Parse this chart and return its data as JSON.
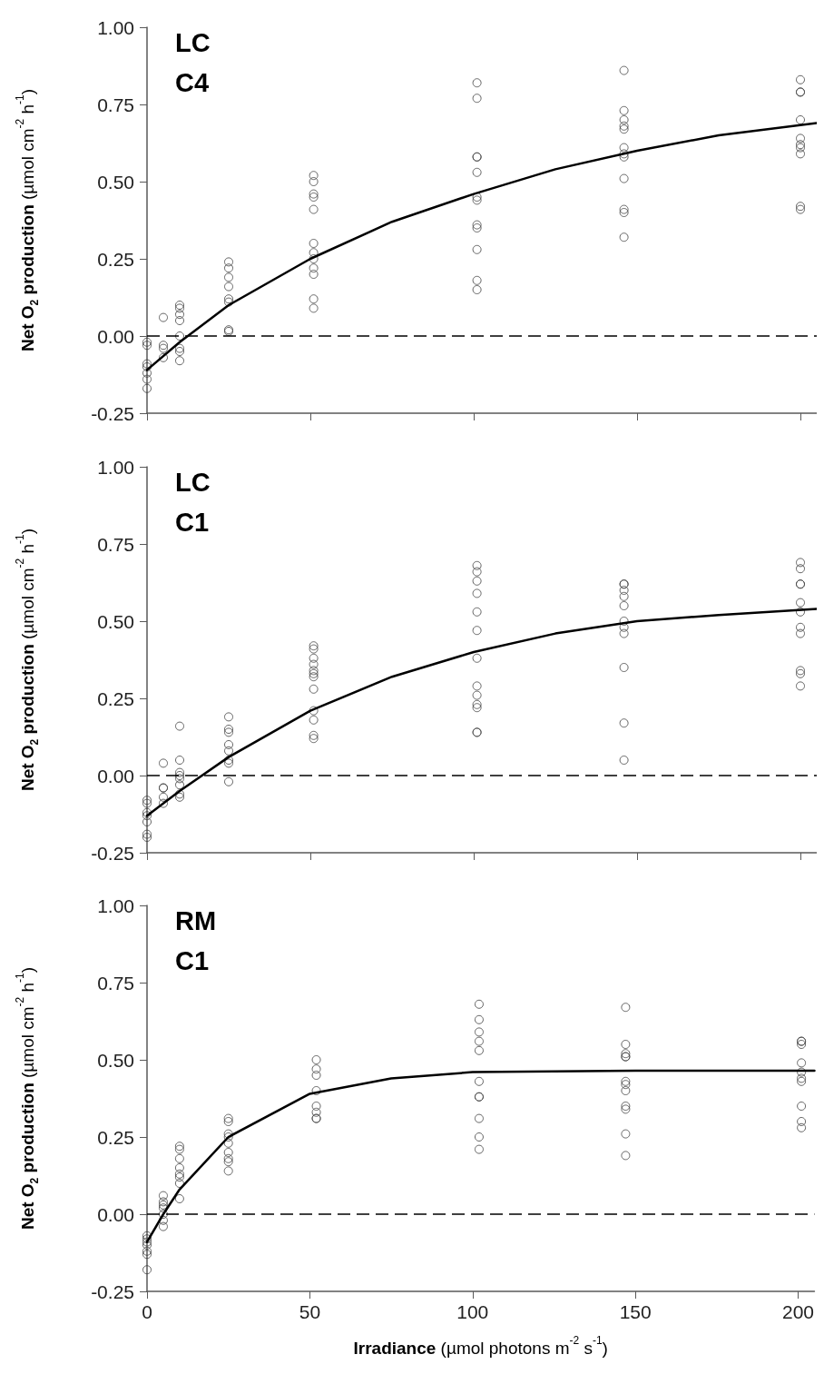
{
  "chart_data": [
    {
      "type": "scatter",
      "annotations": [
        "LC",
        "C4"
      ],
      "ylabel": "Net O$_{2}$ production (µmol cm$^{-2}$ h$^{-1}$)",
      "xlim": [
        0,
        205
      ],
      "xticks": [
        0,
        50,
        100,
        150,
        200
      ],
      "ylim": [
        -0.25,
        1
      ],
      "yticks": [
        {
          "value": -0.25,
          "label": "-0.25"
        },
        {
          "value": 0,
          "label": "0.00"
        },
        {
          "value": 0.25,
          "label": "0.25"
        },
        {
          "value": 0.5,
          "label": "0.50"
        },
        {
          "value": 0.75,
          "label": "0.75"
        },
        {
          "value": 1,
          "label": "1.00"
        }
      ],
      "tick_labels": "y",
      "grid": false,
      "marker": "circle",
      "ref_lines": [
        {
          "axis": "y",
          "value": 0,
          "line_style": "dashed",
          "color": "#000000"
        }
      ],
      "series": [
        {
          "color": "#404040",
          "x": [
            0,
            0,
            0,
            0,
            0,
            0,
            0,
            5,
            5,
            5,
            5,
            10,
            10,
            10,
            10,
            10,
            10,
            10,
            10,
            25,
            25,
            25,
            25,
            25,
            25,
            25,
            25,
            51,
            51,
            51,
            51,
            51,
            51,
            51,
            51,
            51,
            51,
            51,
            51,
            101,
            101,
            101,
            101,
            101,
            101,
            101,
            101,
            101,
            101,
            101,
            101,
            146,
            146,
            146,
            146,
            146,
            146,
            146,
            146,
            146,
            146,
            146,
            146,
            200,
            200,
            200,
            200,
            200,
            200,
            200,
            200,
            200,
            200
          ],
          "values": [
            -0.03,
            -0.09,
            -0.1,
            -0.12,
            -0.14,
            -0.17,
            -0.02,
            0.06,
            -0.03,
            -0.04,
            -0.07,
            0.1,
            0.09,
            0.07,
            0.05,
            0.0,
            -0.04,
            -0.05,
            -0.08,
            0.24,
            0.22,
            0.19,
            0.16,
            0.12,
            0.11,
            0.02,
            0.015,
            0.52,
            0.5,
            0.46,
            0.45,
            0.41,
            0.3,
            0.27,
            0.25,
            0.22,
            0.2,
            0.12,
            0.09,
            0.82,
            0.77,
            0.58,
            0.58,
            0.53,
            0.45,
            0.44,
            0.36,
            0.35,
            0.28,
            0.18,
            0.15,
            0.86,
            0.73,
            0.7,
            0.68,
            0.67,
            0.61,
            0.59,
            0.58,
            0.51,
            0.41,
            0.4,
            0.32,
            0.83,
            0.79,
            0.79,
            0.7,
            0.64,
            0.62,
            0.61,
            0.59,
            0.42,
            0.41
          ]
        },
        {
          "type": "line",
          "marker": "none",
          "color": "#000000",
          "x": [
            0,
            10,
            25,
            50,
            75,
            100,
            125,
            150,
            175,
            205
          ],
          "values": [
            -0.11,
            -0.02,
            0.1,
            0.25,
            0.37,
            0.46,
            0.54,
            0.6,
            0.65,
            0.69
          ]
        }
      ]
    },
    {
      "type": "scatter",
      "annotations": [
        "LC",
        "C1"
      ],
      "ylabel": "Net O$_{2}$ production (µmol cm$^{-2}$ h$^{-1}$)",
      "xlim": [
        0,
        205
      ],
      "xticks": [
        0,
        50,
        100,
        150,
        200
      ],
      "ylim": [
        -0.25,
        1
      ],
      "yticks": [
        {
          "value": -0.25,
          "label": "-0.25"
        },
        {
          "value": 0,
          "label": "0.00"
        },
        {
          "value": 0.25,
          "label": "0.25"
        },
        {
          "value": 0.5,
          "label": "0.50"
        },
        {
          "value": 0.75,
          "label": "0.75"
        },
        {
          "value": 1,
          "label": "1.00"
        }
      ],
      "tick_labels": "y",
      "grid": false,
      "marker": "circle",
      "ref_lines": [
        {
          "axis": "y",
          "value": 0,
          "line_style": "dashed",
          "color": "#000000"
        }
      ],
      "series": [
        {
          "color": "#404040",
          "x": [
            0,
            0,
            0,
            0,
            0,
            0,
            0,
            5,
            5,
            5,
            5,
            5,
            10,
            10,
            10,
            10,
            10,
            10,
            10,
            10,
            25,
            25,
            25,
            25,
            25,
            25,
            25,
            25,
            51,
            51,
            51,
            51,
            51,
            51,
            51,
            51,
            51,
            51,
            51,
            51,
            101,
            101,
            101,
            101,
            101,
            101,
            101,
            101,
            101,
            101,
            101,
            101,
            101,
            146,
            146,
            146,
            146,
            146,
            146,
            146,
            146,
            146,
            146,
            146,
            200,
            200,
            200,
            200,
            200,
            200,
            200,
            200,
            200,
            200,
            200
          ],
          "values": [
            -0.08,
            -0.09,
            -0.12,
            -0.13,
            -0.15,
            -0.19,
            -0.2,
            0.04,
            -0.04,
            -0.04,
            -0.07,
            -0.09,
            0.16,
            0.05,
            0.01,
            0.0,
            -0.01,
            -0.03,
            -0.06,
            -0.07,
            0.19,
            0.15,
            0.14,
            0.1,
            0.08,
            0.05,
            0.04,
            -0.02,
            0.42,
            0.41,
            0.38,
            0.36,
            0.34,
            0.33,
            0.32,
            0.28,
            0.21,
            0.18,
            0.13,
            0.12,
            0.68,
            0.66,
            0.63,
            0.59,
            0.53,
            0.47,
            0.38,
            0.29,
            0.26,
            0.23,
            0.22,
            0.14,
            0.14,
            0.62,
            0.62,
            0.6,
            0.58,
            0.55,
            0.5,
            0.48,
            0.46,
            0.35,
            0.17,
            0.05,
            0.69,
            0.67,
            0.62,
            0.62,
            0.56,
            0.53,
            0.48,
            0.46,
            0.34,
            0.33,
            0.29
          ]
        },
        {
          "type": "line",
          "marker": "none",
          "color": "#000000",
          "x": [
            0,
            10,
            25,
            50,
            75,
            100,
            125,
            150,
            175,
            205
          ],
          "values": [
            -0.13,
            -0.05,
            0.06,
            0.21,
            0.32,
            0.4,
            0.46,
            0.5,
            0.52,
            0.54
          ]
        }
      ]
    },
    {
      "type": "scatter",
      "annotations": [
        "RM",
        "C1"
      ],
      "ylabel": "Net O$_{2}$ production (µmol cm$^{-2}$ h$^{-1}$)",
      "xlabel": "Irradiance (µmol photons m$^{-2}$ s$^{-1}$)",
      "xlim": [
        0,
        205
      ],
      "xticks": [
        0,
        50,
        100,
        150,
        200
      ],
      "ylim": [
        -0.25,
        1
      ],
      "yticks": [
        {
          "value": -0.25,
          "label": "-0.25"
        },
        {
          "value": 0,
          "label": "0.00"
        },
        {
          "value": 0.25,
          "label": "0.25"
        },
        {
          "value": 0.5,
          "label": "0.50"
        },
        {
          "value": 0.75,
          "label": "0.75"
        },
        {
          "value": 1,
          "label": "1.00"
        }
      ],
      "grid": false,
      "marker": "circle",
      "ref_lines": [
        {
          "axis": "y",
          "value": 0,
          "line_style": "dashed",
          "color": "#000000"
        }
      ],
      "series": [
        {
          "color": "#404040",
          "x": [
            0,
            0,
            0,
            0,
            0,
            0,
            0,
            5,
            5,
            5,
            5,
            5,
            5,
            5,
            10,
            10,
            10,
            10,
            10,
            10,
            10,
            10,
            25,
            25,
            25,
            25,
            25,
            25,
            25,
            25,
            25,
            52,
            52,
            52,
            52,
            52,
            52,
            52,
            52,
            102,
            102,
            102,
            102,
            102,
            102,
            102,
            102,
            102,
            102,
            102,
            147,
            147,
            147,
            147,
            147,
            147,
            147,
            147,
            147,
            147,
            147,
            147,
            201,
            201,
            201,
            201,
            201,
            201,
            201,
            201,
            201,
            201
          ],
          "values": [
            -0.07,
            -0.08,
            -0.09,
            -0.1,
            -0.12,
            -0.13,
            -0.18,
            0.06,
            0.04,
            0.03,
            0.02,
            0.0,
            -0.02,
            -0.04,
            0.22,
            0.21,
            0.18,
            0.15,
            0.13,
            0.12,
            0.1,
            0.05,
            0.31,
            0.3,
            0.26,
            0.25,
            0.23,
            0.2,
            0.18,
            0.17,
            0.14,
            0.5,
            0.47,
            0.45,
            0.4,
            0.35,
            0.33,
            0.31,
            0.31,
            0.68,
            0.63,
            0.59,
            0.56,
            0.53,
            0.43,
            0.38,
            0.38,
            0.31,
            0.25,
            0.21,
            0.67,
            0.55,
            0.52,
            0.51,
            0.51,
            0.43,
            0.42,
            0.4,
            0.35,
            0.34,
            0.26,
            0.19,
            0.56,
            0.56,
            0.55,
            0.49,
            0.46,
            0.44,
            0.43,
            0.35,
            0.3,
            0.28
          ]
        },
        {
          "type": "line",
          "marker": "none",
          "color": "#000000",
          "x": [
            0,
            5,
            10,
            25,
            50,
            75,
            100,
            150,
            205
          ],
          "values": [
            -0.09,
            0.0,
            0.08,
            0.25,
            0.39,
            0.44,
            0.46,
            0.465,
            0.465
          ]
        }
      ]
    }
  ]
}
